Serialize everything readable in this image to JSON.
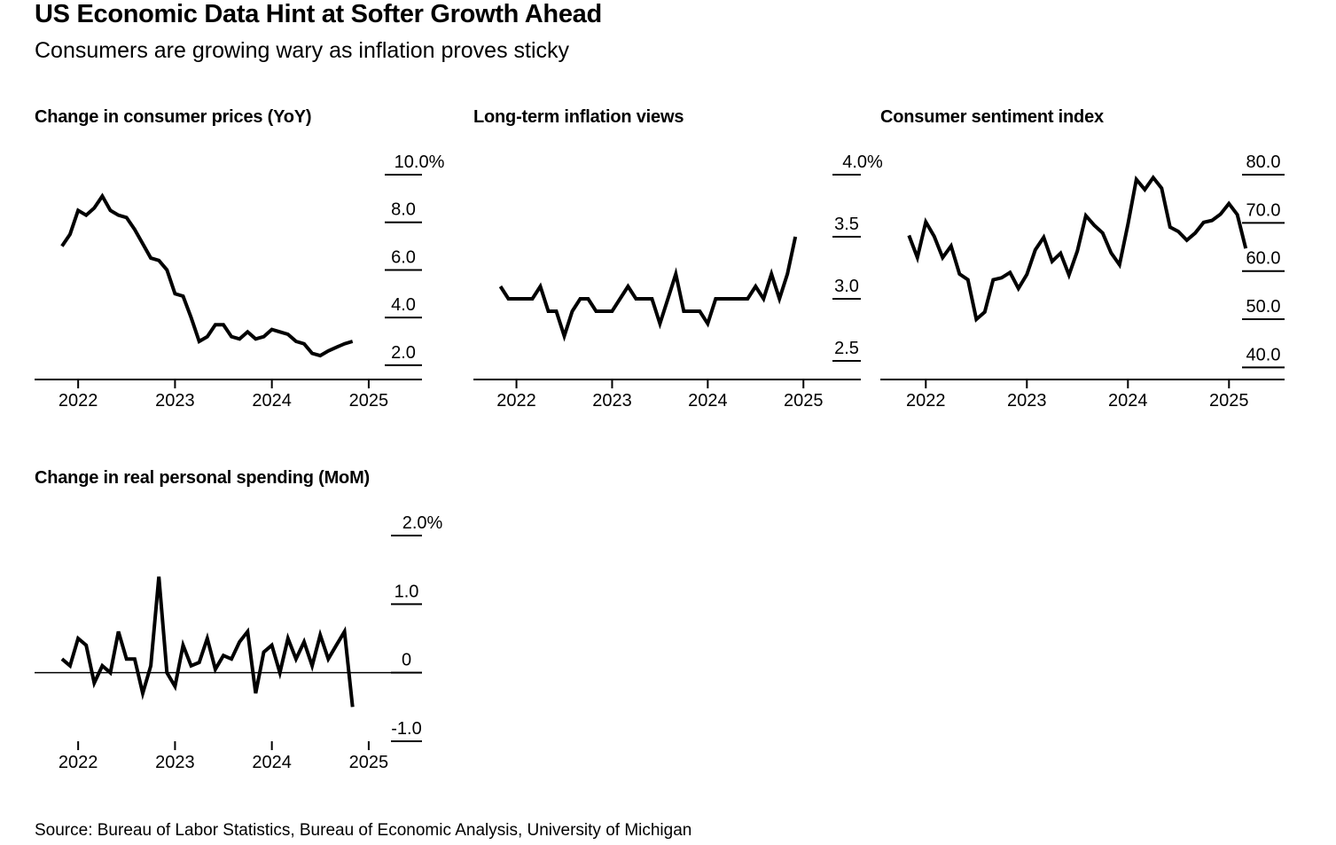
{
  "header": {
    "title": "US Economic Data Hint at Softer Growth Ahead",
    "subtitle": "Consumers are growing wary as inflation proves sticky"
  },
  "footer": {
    "source": "Source: Bureau of Labor Statistics, Bureau of Economic Analysis, University of Michigan"
  },
  "colors": {
    "line": "#000000",
    "axis": "#000000",
    "background": "#ffffff"
  },
  "chart_data": [
    {
      "id": "cpi",
      "type": "line",
      "title": "Change in consumer prices (YoY)",
      "x_start": 2021.833,
      "x_step": 0.08333,
      "xlim": [
        2021.55,
        2025.55
      ],
      "xticks": [
        2022,
        2023,
        2024,
        2025
      ],
      "xtick_labels": [
        "2022",
        "2023",
        "2024",
        "2025"
      ],
      "ylim": [
        1.4,
        10.0
      ],
      "yticks": [
        2,
        4,
        6,
        8,
        10
      ],
      "ytick_labels": [
        "2.0",
        "4.0",
        "6.0",
        "8.0",
        "10.0%"
      ],
      "baseline": 1.4,
      "xlabel": "",
      "ylabel": "",
      "values": [
        7.0,
        7.5,
        8.5,
        8.3,
        8.6,
        9.1,
        8.5,
        8.3,
        8.2,
        7.7,
        7.1,
        6.5,
        6.4,
        6.0,
        5.0,
        4.9,
        4.0,
        3.0,
        3.2,
        3.7,
        3.7,
        3.2,
        3.1,
        3.4,
        3.1,
        3.2,
        3.5,
        3.4,
        3.3,
        3.0,
        2.9,
        2.5,
        2.4,
        2.6,
        2.75,
        2.9,
        3.0
      ]
    },
    {
      "id": "inflation-views",
      "type": "line",
      "title": "Long-term inflation views",
      "x_start": 2021.833,
      "x_step": 0.08333,
      "xlim": [
        2021.55,
        2025.6
      ],
      "xticks": [
        2022,
        2023,
        2024,
        2025
      ],
      "xtick_labels": [
        "2022",
        "2023",
        "2024",
        "2025"
      ],
      "ylim": [
        2.35,
        4.0
      ],
      "yticks": [
        2.5,
        3.0,
        3.5,
        4.0
      ],
      "ytick_labels": [
        "2.5",
        "3.0",
        "3.5",
        "4.0%"
      ],
      "baseline": 2.35,
      "xlabel": "",
      "ylabel": "",
      "values": [
        3.1,
        3.0,
        3.0,
        3.0,
        3.0,
        3.1,
        2.9,
        2.9,
        2.7,
        2.9,
        3.0,
        3.0,
        2.9,
        2.9,
        2.9,
        3.0,
        3.1,
        3.0,
        3.0,
        3.0,
        2.8,
        3.0,
        3.2,
        2.9,
        2.9,
        2.9,
        2.8,
        3.0,
        3.0,
        3.0,
        3.0,
        3.0,
        3.1,
        3.0,
        3.2,
        3.0,
        3.2,
        3.5
      ]
    },
    {
      "id": "sentiment",
      "type": "line",
      "title": "Consumer sentiment index",
      "x_start": 2021.833,
      "x_step": 0.08333,
      "xlim": [
        2021.55,
        2025.55
      ],
      "xticks": [
        2022,
        2023,
        2024,
        2025
      ],
      "xtick_labels": [
        "2022",
        "2023",
        "2024",
        "2025"
      ],
      "ylim": [
        37.5,
        80.0
      ],
      "yticks": [
        40,
        50,
        60,
        70,
        80
      ],
      "ytick_labels": [
        "40.0",
        "50.0",
        "60.0",
        "70.0",
        "80.0"
      ],
      "baseline": 37.5,
      "xlabel": "",
      "ylabel": "",
      "values": [
        67.4,
        62.8,
        70.2,
        67.2,
        62.8,
        65.2,
        59.4,
        58.2,
        50.0,
        51.5,
        58.2,
        58.6,
        59.7,
        56.4,
        59.3,
        64.4,
        67.0,
        62.0,
        63.7,
        59.2,
        64.2,
        71.5,
        69.5,
        67.9,
        63.8,
        61.3,
        69.7,
        79.0,
        76.9,
        79.4,
        77.2,
        69.1,
        68.2,
        66.4,
        67.9,
        70.1,
        70.5,
        71.8,
        74.0,
        71.7,
        64.7
      ]
    },
    {
      "id": "spending",
      "type": "line",
      "title": "Change in real personal spending (MoM)",
      "x_start": 2021.833,
      "x_step": 0.08333,
      "xlim": [
        2021.55,
        2025.55
      ],
      "xticks": [
        2022,
        2023,
        2024,
        2025
      ],
      "xtick_labels": [
        "2022",
        "2023",
        "2024",
        "2025"
      ],
      "ylim": [
        -1.0,
        2.0
      ],
      "yticks": [
        -1,
        0,
        1,
        2
      ],
      "ytick_labels": [
        "-1.0",
        "0",
        "1.0",
        "2.0%"
      ],
      "baseline": 0,
      "xlabel": "",
      "ylabel": "",
      "values": [
        0.2,
        0.1,
        0.5,
        0.4,
        -0.15,
        0.1,
        0.0,
        0.6,
        0.2,
        0.2,
        -0.3,
        0.1,
        1.4,
        0.0,
        -0.2,
        0.4,
        0.1,
        0.15,
        0.5,
        0.05,
        0.25,
        0.2,
        0.45,
        0.6,
        -0.3,
        0.3,
        0.4,
        0.0,
        0.5,
        0.2,
        0.45,
        0.1,
        0.55,
        0.2,
        0.4,
        0.6,
        -0.5
      ]
    }
  ]
}
